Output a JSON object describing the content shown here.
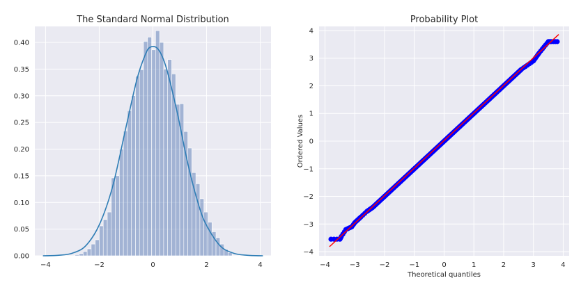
{
  "colors": {
    "panel_bg": "#EAEAF2",
    "grid": "#FFFFFF",
    "hist_fill": "#4C72B0",
    "kde_line": "#2E7DB5",
    "scatter_points": "#0000FF",
    "fit_line": "#FF0000"
  },
  "chart_data": [
    {
      "type": "bar",
      "subtype": "histogram+kde",
      "title": "The Standard Normal Distribution",
      "xlabel": "",
      "ylabel": "",
      "xlim": [
        -4.4,
        4.4
      ],
      "ylim": [
        0,
        0.43
      ],
      "xticks": [
        "−4",
        "−2",
        "0",
        "2",
        "4"
      ],
      "xtick_values": [
        -4,
        -2,
        0,
        2,
        4
      ],
      "yticks": [
        "0.00",
        "0.05",
        "0.10",
        "0.15",
        "0.20",
        "0.25",
        "0.30",
        "0.35",
        "0.40"
      ],
      "ytick_values": [
        0,
        0.05,
        0.1,
        0.15,
        0.2,
        0.25,
        0.3,
        0.35,
        0.4
      ],
      "grid": true,
      "bins": [
        {
          "x0": -2.9,
          "x1": -2.75,
          "value": 0.002
        },
        {
          "x0": -2.75,
          "x1": -2.6,
          "value": 0.004
        },
        {
          "x0": -2.6,
          "x1": -2.45,
          "value": 0.008
        },
        {
          "x0": -2.45,
          "x1": -2.3,
          "value": 0.013
        },
        {
          "x0": -2.3,
          "x1": -2.15,
          "value": 0.022
        },
        {
          "x0": -2.15,
          "x1": -2.0,
          "value": 0.03
        },
        {
          "x0": -2.0,
          "x1": -1.85,
          "value": 0.056
        },
        {
          "x0": -1.85,
          "x1": -1.7,
          "value": 0.068
        },
        {
          "x0": -1.7,
          "x1": -1.55,
          "value": 0.082
        },
        {
          "x0": -1.55,
          "x1": -1.4,
          "value": 0.146
        },
        {
          "x0": -1.4,
          "x1": -1.25,
          "value": 0.15
        },
        {
          "x0": -1.25,
          "x1": -1.1,
          "value": 0.2
        },
        {
          "x0": -1.1,
          "x1": -0.95,
          "value": 0.234
        },
        {
          "x0": -0.95,
          "x1": -0.8,
          "value": 0.272
        },
        {
          "x0": -0.8,
          "x1": -0.65,
          "value": 0.3
        },
        {
          "x0": -0.65,
          "x1": -0.5,
          "value": 0.337
        },
        {
          "x0": -0.5,
          "x1": -0.35,
          "value": 0.349
        },
        {
          "x0": -0.35,
          "x1": -0.2,
          "value": 0.402
        },
        {
          "x0": -0.2,
          "x1": -0.05,
          "value": 0.41
        },
        {
          "x0": -0.05,
          "x1": 0.1,
          "value": 0.386
        },
        {
          "x0": 0.1,
          "x1": 0.25,
          "value": 0.422
        },
        {
          "x0": 0.25,
          "x1": 0.4,
          "value": 0.4
        },
        {
          "x0": 0.4,
          "x1": 0.55,
          "value": 0.35
        },
        {
          "x0": 0.55,
          "x1": 0.7,
          "value": 0.368
        },
        {
          "x0": 0.7,
          "x1": 0.85,
          "value": 0.341
        },
        {
          "x0": 0.85,
          "x1": 1.0,
          "value": 0.284
        },
        {
          "x0": 1.0,
          "x1": 1.15,
          "value": 0.285
        },
        {
          "x0": 1.15,
          "x1": 1.3,
          "value": 0.233
        },
        {
          "x0": 1.3,
          "x1": 1.45,
          "value": 0.202
        },
        {
          "x0": 1.45,
          "x1": 1.6,
          "value": 0.156
        },
        {
          "x0": 1.6,
          "x1": 1.75,
          "value": 0.135
        },
        {
          "x0": 1.75,
          "x1": 1.9,
          "value": 0.107
        },
        {
          "x0": 1.9,
          "x1": 2.05,
          "value": 0.082
        },
        {
          "x0": 2.05,
          "x1": 2.2,
          "value": 0.063
        },
        {
          "x0": 2.2,
          "x1": 2.35,
          "value": 0.045
        },
        {
          "x0": 2.35,
          "x1": 2.5,
          "value": 0.034
        },
        {
          "x0": 2.5,
          "x1": 2.65,
          "value": 0.022
        },
        {
          "x0": 2.65,
          "x1": 2.8,
          "value": 0.012
        },
        {
          "x0": 2.8,
          "x1": 2.95,
          "value": 0.006
        }
      ],
      "kde": {
        "x": [
          -4.1,
          -3.5,
          -3.0,
          -2.5,
          -2.0,
          -1.5,
          -1.0,
          -0.6,
          -0.3,
          -0.1,
          0.2,
          0.5,
          0.9,
          1.3,
          1.7,
          2.0,
          2.5,
          3.0,
          3.5,
          4.1
        ],
        "y": [
          0.0,
          0.001,
          0.005,
          0.019,
          0.058,
          0.13,
          0.242,
          0.33,
          0.375,
          0.391,
          0.387,
          0.352,
          0.27,
          0.173,
          0.096,
          0.057,
          0.019,
          0.005,
          0.001,
          0.0
        ]
      }
    },
    {
      "type": "scatter",
      "subtype": "probability-plot",
      "title": "Probability Plot",
      "xlabel": "Theoretical quantiles",
      "ylabel": "Ordered Values",
      "xlim": [
        -4.2,
        4.2
      ],
      "ylim": [
        -4.15,
        4.15
      ],
      "xticks": [
        "−4",
        "−3",
        "−2",
        "−1",
        "0",
        "1",
        "2",
        "3",
        "4"
      ],
      "xtick_values": [
        -4,
        -3,
        -2,
        -1,
        0,
        1,
        2,
        3,
        4
      ],
      "yticks": [
        "−4",
        "−3",
        "−2",
        "−1",
        "0",
        "1",
        "2",
        "3",
        "4"
      ],
      "ytick_values": [
        -4,
        -3,
        -2,
        -1,
        0,
        1,
        2,
        3,
        4
      ],
      "grid": true,
      "fit_line": {
        "x": [
          -3.85,
          3.85
        ],
        "y": [
          -3.82,
          3.86
        ]
      },
      "points": {
        "x": [
          -3.8,
          -3.5,
          -3.45,
          -3.3,
          -3.2,
          -3.1,
          -3.0,
          -2.9,
          -2.8,
          -2.6,
          -2.4,
          -2.2,
          -2.0,
          -1.8,
          -1.6,
          -1.4,
          -1.2,
          -1.0,
          -0.8,
          -0.6,
          -0.4,
          -0.2,
          0.0,
          0.2,
          0.4,
          0.6,
          0.8,
          1.0,
          1.2,
          1.4,
          1.6,
          1.8,
          2.0,
          2.2,
          2.4,
          2.6,
          2.8,
          3.0,
          3.1,
          3.2,
          3.35,
          3.5,
          3.6,
          3.8
        ],
        "y": [
          -3.55,
          -3.55,
          -3.45,
          -3.2,
          -3.15,
          -3.1,
          -2.95,
          -2.85,
          -2.75,
          -2.55,
          -2.4,
          -2.2,
          -2.0,
          -1.8,
          -1.6,
          -1.4,
          -1.2,
          -1.0,
          -0.8,
          -0.6,
          -0.4,
          -0.2,
          0.0,
          0.2,
          0.4,
          0.6,
          0.8,
          1.0,
          1.2,
          1.4,
          1.6,
          1.8,
          2.0,
          2.2,
          2.4,
          2.6,
          2.75,
          2.9,
          3.05,
          3.2,
          3.4,
          3.6,
          3.6,
          3.6
        ]
      }
    }
  ]
}
